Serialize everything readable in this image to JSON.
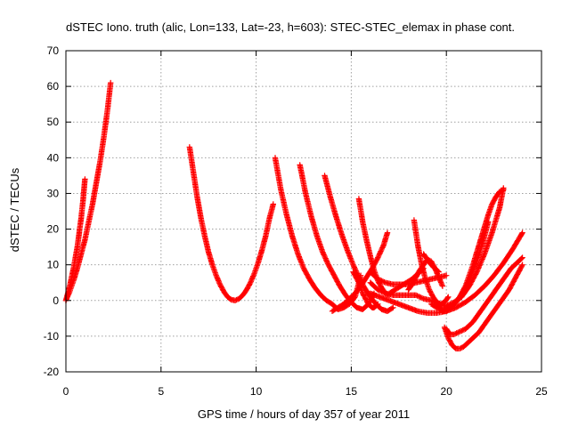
{
  "chart_data": {
    "type": "scatter",
    "title": "dSTEC Iono. truth (alic, Lon=133, Lat=-23, h=603): STEC-STEC_elemax in phase cont.",
    "xlabel": "GPS time / hours of day 357 of year 2011",
    "ylabel": "dSTEC  / TECUs",
    "xlim": [
      0,
      25
    ],
    "ylim": [
      -20,
      70
    ],
    "xticks": [
      0,
      5,
      10,
      15,
      20,
      25
    ],
    "yticks": [
      -20,
      -10,
      0,
      10,
      20,
      30,
      40,
      50,
      60,
      70
    ],
    "xtick_labels": [
      "0",
      "5",
      "10",
      "15",
      "20",
      "25"
    ],
    "ytick_labels": [
      "-20",
      "-10",
      "0",
      "10",
      "20",
      "30",
      "40",
      "50",
      "60",
      "70"
    ],
    "grid": true,
    "marker": "+",
    "color": "#ff0000",
    "series": [
      {
        "x": [
          0.0,
          0.1,
          0.2,
          0.3,
          0.4,
          0.5,
          0.6,
          0.7,
          0.8,
          0.9,
          1.0
        ],
        "y": [
          0,
          2,
          4,
          6.5,
          9,
          12,
          15,
          19,
          23,
          28,
          34
        ]
      },
      {
        "x": [
          0.0,
          0.2,
          0.4,
          0.6,
          0.8,
          1.0,
          1.2,
          1.4,
          1.6,
          1.8,
          2.0,
          2.2,
          2.35
        ],
        "y": [
          0,
          2.5,
          5.5,
          9,
          13,
          17,
          22,
          27,
          33,
          39,
          46,
          54,
          61
        ]
      },
      {
        "x": [
          6.5,
          6.7,
          6.9,
          7.1,
          7.3,
          7.5,
          7.7,
          7.9,
          8.1,
          8.3,
          8.5,
          8.7,
          8.9,
          9.1,
          9.3,
          9.5,
          9.7,
          9.9,
          10.1,
          10.3,
          10.5,
          10.7,
          10.9
        ],
        "y": [
          43,
          36,
          29,
          23,
          18,
          13.5,
          10,
          7,
          4.5,
          2.5,
          1,
          0.2,
          0,
          0.5,
          1.5,
          3,
          5,
          7.5,
          10.5,
          14,
          18,
          23,
          27
        ]
      },
      {
        "x": [
          11.0,
          11.3,
          11.6,
          11.9,
          12.2,
          12.5,
          12.8,
          13.1,
          13.4,
          13.7,
          14.0,
          14.3,
          14.6,
          14.9,
          15.2,
          15.5
        ],
        "y": [
          40,
          31,
          24,
          18,
          13,
          9,
          6,
          3.5,
          1.5,
          0,
          -1,
          -2.5,
          -2,
          -1,
          1,
          7
        ]
      },
      {
        "x": [
          12.3,
          12.6,
          12.9,
          13.2,
          13.5,
          13.8,
          14.1,
          14.4,
          14.7,
          15.0,
          15.3,
          15.6,
          15.9,
          16.2
        ],
        "y": [
          38,
          30,
          23.5,
          18,
          13.5,
          10,
          7,
          4,
          1.5,
          -0.5,
          -2,
          -2.5,
          -1,
          2
        ]
      },
      {
        "x": [
          13.6,
          13.9,
          14.2,
          14.5,
          14.8,
          15.1,
          15.4,
          15.7,
          16.0,
          16.3,
          16.6,
          16.9,
          17.2
        ],
        "y": [
          35,
          29,
          23.5,
          18.5,
          14,
          10,
          6.5,
          3.5,
          1,
          -1,
          -2.5,
          -3,
          -2
        ]
      },
      {
        "x": [
          15.4,
          15.6,
          15.8,
          16.0,
          16.2,
          16.4,
          16.6,
          16.8,
          17.0
        ],
        "y": [
          28.5,
          22,
          17,
          12.5,
          8.5,
          5.5,
          3.5,
          2,
          1.5
        ]
      },
      {
        "x": [
          14.0,
          14.3,
          14.6,
          14.9,
          15.2,
          15.5,
          15.8,
          16.1,
          16.4,
          16.7,
          16.9
        ],
        "y": [
          -3,
          -2,
          -1,
          0.5,
          2,
          4,
          6.5,
          9,
          12,
          15.5,
          19
        ]
      },
      {
        "x": [
          18.3,
          18.5,
          18.7,
          18.9,
          19.1,
          19.3,
          19.5,
          19.7,
          19.9,
          20.1
        ],
        "y": [
          22.5,
          15.5,
          10,
          6,
          3,
          1,
          -0.5,
          -1,
          -0.5,
          1
        ]
      },
      {
        "x": [
          16.0,
          16.4,
          16.8,
          17.2,
          17.6,
          18.0,
          18.4,
          18.8,
          19.2,
          19.6,
          20.0,
          20.4,
          20.8,
          21.2,
          21.6,
          22.0,
          22.4,
          22.8,
          23.0
        ],
        "y": [
          5,
          3,
          2,
          1.5,
          1.5,
          1.5,
          1.5,
          0.5,
          0,
          -1,
          -1.5,
          -0.5,
          1,
          4,
          8,
          13,
          19,
          26,
          31.5
        ]
      },
      {
        "x": [
          16.0,
          16.5,
          17.0,
          17.5,
          18.0,
          18.5,
          19.0,
          19.5,
          20.0,
          20.5,
          21.0,
          21.5,
          22.0,
          22.5,
          23.0,
          23.5,
          24.0
        ],
        "y": [
          2,
          1,
          0,
          -1,
          -2,
          -3,
          -3.5,
          -3.5,
          -3,
          -2,
          -0.5,
          1.5,
          4,
          7,
          10.5,
          14.5,
          19
        ]
      },
      {
        "x": [
          19.9,
          20.1,
          20.3,
          20.5,
          20.7,
          20.9,
          21.1,
          21.3,
          21.5,
          21.7,
          21.9,
          22.1,
          22.3,
          22.5,
          22.7,
          22.9,
          23.1,
          23.3,
          23.5,
          23.7,
          23.9,
          24.0
        ],
        "y": [
          -7.5,
          -10.5,
          -12.5,
          -13.5,
          -13.5,
          -13,
          -12,
          -11,
          -10,
          -9,
          -7.5,
          -6,
          -4.5,
          -3,
          -1.5,
          0,
          1.5,
          3,
          5,
          7,
          9,
          10
        ]
      },
      {
        "x": [
          20.0,
          20.2,
          20.4,
          20.6,
          20.8,
          21.0,
          21.2,
          21.4,
          21.6,
          21.8,
          22.0,
          22.2,
          22.4,
          22.6,
          22.8,
          23.0,
          23.2,
          23.4,
          23.6,
          23.8,
          24.0
        ],
        "y": [
          -8,
          -9.5,
          -9.5,
          -9,
          -8.5,
          -8,
          -7,
          -6,
          -4.5,
          -3,
          -1.5,
          0,
          1.5,
          3,
          4.5,
          6,
          7.5,
          9,
          10,
          11,
          12
        ]
      },
      {
        "x": [
          19.6,
          19.8,
          20.0,
          20.2,
          20.4,
          20.6,
          20.8,
          21.0,
          21.2,
          21.4,
          21.6,
          21.8,
          22.0,
          22.2,
          22.4,
          22.6,
          22.8,
          23.0
        ],
        "y": [
          -2,
          -3,
          -3,
          -2,
          -1,
          0,
          2,
          4,
          7,
          10,
          13.5,
          17,
          20.5,
          24,
          27,
          29,
          30.5,
          31
        ]
      },
      {
        "x": [
          19.2,
          19.5,
          19.8,
          20.1,
          20.4,
          20.7,
          21.0,
          21.3,
          21.6,
          21.9,
          22.2
        ],
        "y": [
          -1,
          -2,
          -2.5,
          -2,
          -1,
          1,
          3.5,
          7,
          11,
          16,
          22
        ]
      },
      {
        "x": [
          16.0,
          16.4,
          16.8,
          17.2,
          17.6,
          18.0,
          18.4,
          18.8,
          19.2,
          19.6,
          20.0
        ],
        "y": [
          8,
          6,
          5,
          4.5,
          4.5,
          4.5,
          5,
          5.5,
          6,
          6.5,
          7
        ]
      },
      {
        "x": [
          18.0,
          18.2,
          18.4,
          18.6,
          18.8,
          19.0,
          19.2,
          19.4,
          19.6,
          19.8
        ],
        "y": [
          3,
          4.5,
          6.5,
          8.5,
          10,
          11.5,
          11,
          9,
          6.5,
          4
        ]
      },
      {
        "x": [
          15.1,
          15.2,
          15.3,
          15.4,
          15.5,
          15.6,
          15.7,
          15.8,
          15.9,
          16.0,
          16.1,
          16.2,
          16.3,
          16.4
        ],
        "y": [
          8,
          7,
          6,
          5,
          3.5,
          2,
          1,
          0,
          -1,
          -1.5,
          -2,
          -2,
          -1.5,
          -1
        ]
      },
      {
        "x": [
          17.0,
          17.3,
          17.6,
          17.9,
          18.2,
          18.5,
          18.8
        ],
        "y": [
          2,
          3,
          4,
          5,
          6,
          7.5,
          9
        ]
      },
      {
        "x": [
          18.8,
          19.0,
          19.2,
          19.4,
          19.6
        ],
        "y": [
          13,
          11.5,
          10,
          9,
          8
        ]
      }
    ]
  }
}
